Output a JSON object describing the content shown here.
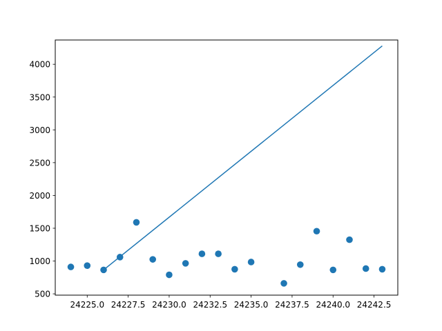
{
  "chart_data": {
    "type": "scatter",
    "title": "",
    "xlabel": "",
    "ylabel": "",
    "xlim": [
      24223.05,
      24243.95
    ],
    "ylim": [
      480,
      4370
    ],
    "xticks": [
      24225.0,
      24227.5,
      24230.0,
      24232.5,
      24235.0,
      24237.5,
      24240.0,
      24242.5
    ],
    "xtick_labels": [
      "24225.0",
      "24227.5",
      "24230.0",
      "24232.5",
      "24235.0",
      "24237.5",
      "24240.0",
      "24242.5"
    ],
    "yticks": [
      500,
      1000,
      1500,
      2000,
      2500,
      3000,
      3500,
      4000
    ],
    "ytick_labels": [
      "500",
      "1000",
      "1500",
      "2000",
      "2500",
      "3000",
      "3500",
      "4000"
    ],
    "grid": false,
    "series": [
      {
        "type": "scatter",
        "color": "#1f77b4",
        "points": [
          [
            24224,
            910
          ],
          [
            24225,
            930
          ],
          [
            24226,
            865
          ],
          [
            24227,
            1060
          ],
          [
            24228,
            1590
          ],
          [
            24229,
            1025
          ],
          [
            24230,
            790
          ],
          [
            24231,
            965
          ],
          [
            24232,
            1110
          ],
          [
            24233,
            1110
          ],
          [
            24234,
            875
          ],
          [
            24235,
            985
          ],
          [
            24237,
            660
          ],
          [
            24238,
            945
          ],
          [
            24239,
            1455
          ],
          [
            24240,
            865
          ],
          [
            24241,
            1325
          ],
          [
            24242,
            885
          ],
          [
            24243,
            875
          ]
        ]
      },
      {
        "type": "line",
        "color": "#1f77b4",
        "points": [
          [
            24226,
            865
          ],
          [
            24243,
            4280
          ]
        ]
      }
    ]
  }
}
